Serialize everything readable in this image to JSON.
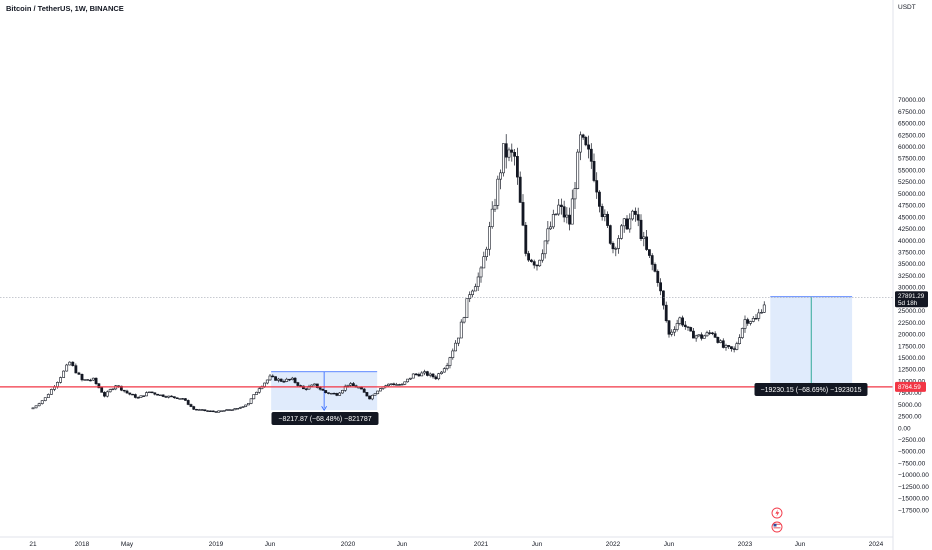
{
  "header": {
    "title": "Bitcoin / TetherUS, 1W, BINANCE"
  },
  "colors": {
    "candle": "#131722",
    "red_line": "#f23645",
    "measure_fill": "#dbe7fb",
    "measure_stroke": "#2962ff",
    "label_bg": "#131722",
    "grid_dot": "#8f94a1",
    "current_price_bg": "#131722",
    "red_tag_bg": "#f23645"
  },
  "price_axis": {
    "currency": "USDT",
    "ticks": [
      "70000.00",
      "67500.00",
      "65000.00",
      "62500.00",
      "60000.00",
      "57500.00",
      "55000.00",
      "52500.00",
      "50000.00",
      "47500.00",
      "45000.00",
      "42500.00",
      "40000.00",
      "37500.00",
      "35000.00",
      "32500.00",
      "30000.00",
      "27500.00",
      "25000.00",
      "22500.00",
      "20000.00",
      "17500.00",
      "15000.00",
      "12500.00",
      "10000.00",
      "7500.00",
      "5000.00",
      "2500.00",
      "0.00",
      "−2500.00",
      "−5000.00",
      "−7500.00",
      "−10000.00",
      "−12500.00",
      "−15000.00",
      "−17500.00"
    ],
    "current_price": "27891.29",
    "countdown": "5d 18h",
    "level_label": "8764.59"
  },
  "time_axis": {
    "labels": [
      "21",
      "2018",
      "May",
      "2019",
      "Jun",
      "2020",
      "Jun",
      "2021",
      "Jun",
      "2022",
      "Jun",
      "2023",
      "Jun",
      "2024"
    ]
  },
  "annotations": {
    "measure_left": "−8217.87 (−68.48%) −821787",
    "measure_right": "−19230.15 (−68.69%) −1923015"
  },
  "icons": {
    "flash": "lightning-icon",
    "flag": "us-flag-icon"
  },
  "chart_data": {
    "type": "candlestick",
    "title": "Bitcoin / TetherUS, 1W, BINANCE",
    "xlabel": "",
    "ylabel": "USDT",
    "ylim": [
      -17500,
      70000
    ],
    "horizontal_level": 8764.59,
    "current_price": 27891.29,
    "grid": false,
    "series": [
      {
        "x": [
          "2017-09",
          "2017-10",
          "2017-11",
          "2017-12",
          "2018-01",
          "2018-02",
          "2018-03",
          "2018-04",
          "2018-05",
          "2018-06",
          "2018-07",
          "2018-08",
          "2018-09",
          "2018-10",
          "2018-11",
          "2018-12",
          "2019-01",
          "2019-02",
          "2019-03",
          "2019-04",
          "2019-05",
          "2019-06",
          "2019-07",
          "2019-08",
          "2019-09",
          "2019-10",
          "2019-11",
          "2019-12",
          "2020-01",
          "2020-02",
          "2020-03",
          "2020-04",
          "2020-05",
          "2020-06",
          "2020-07",
          "2020-08",
          "2020-09",
          "2020-10",
          "2020-11",
          "2020-12",
          "2021-01",
          "2021-02",
          "2021-03",
          "2021-04",
          "2021-05",
          "2021-06",
          "2021-07",
          "2021-08",
          "2021-09",
          "2021-10",
          "2021-11",
          "2021-12",
          "2022-01",
          "2022-02",
          "2022-03",
          "2022-04",
          "2022-05",
          "2022-06",
          "2022-07",
          "2022-08",
          "2022-09",
          "2022-10",
          "2022-11",
          "2022-12",
          "2023-01",
          "2023-02",
          "2023-03"
        ],
        "close": [
          4300,
          6400,
          10000,
          14000,
          10200,
          10300,
          6900,
          9200,
          7500,
          6400,
          7700,
          7000,
          6600,
          6300,
          4000,
          3700,
          3450,
          3800,
          4100,
          5300,
          8600,
          10800,
          10100,
          10300,
          8300,
          9150,
          7550,
          7200,
          9350,
          8600,
          6400,
          8650,
          9450,
          9150,
          11350,
          11650,
          10750,
          13800,
          19700,
          29000,
          33100,
          45200,
          58800,
          57700,
          37300,
          35000,
          41500,
          47100,
          43800,
          61300,
          57000,
          46300,
          38500,
          43200,
          45500,
          37600,
          31800,
          19900,
          23300,
          20000,
          19400,
          20500,
          17200,
          16550,
          23100,
          23150,
          27891
        ]
      }
    ],
    "measures": [
      {
        "from": 12000,
        "to": 3782,
        "change": -8217.87,
        "percent": -68.48,
        "label": "−8217.87 (−68.48%) −821787"
      },
      {
        "from": 27995,
        "to": 8765,
        "change": -19230.15,
        "percent": -68.69,
        "label": "−19230.15 (−68.69%) −1923015"
      }
    ]
  }
}
